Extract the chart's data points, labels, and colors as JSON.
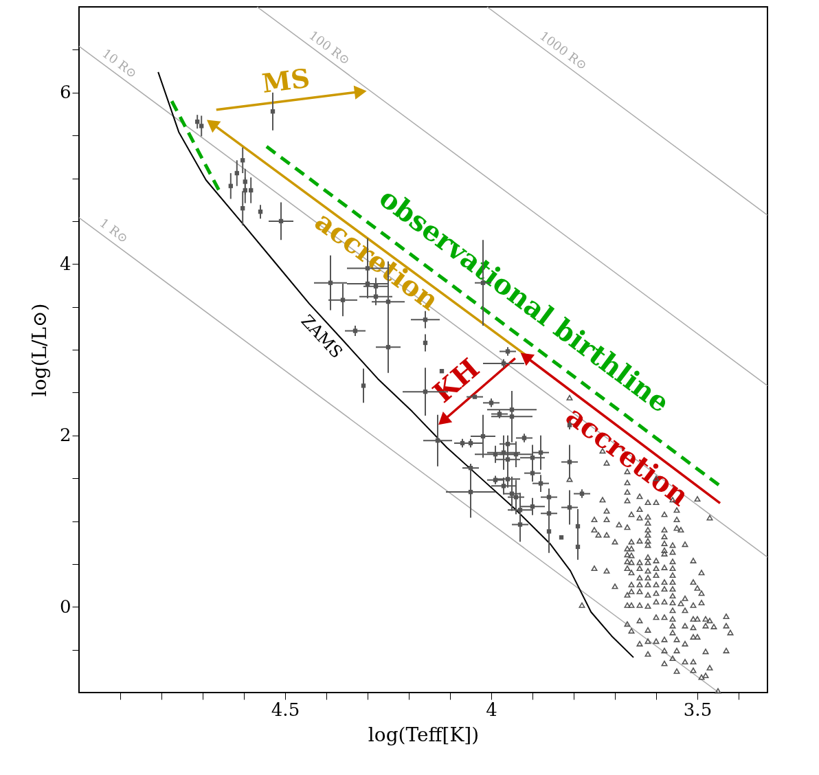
{
  "chart_data": {
    "type": "scatter",
    "xlabel": "log(Teff[K])",
    "ylabel": "log(L/L⊙)",
    "xlim": [
      5.0,
      3.33
    ],
    "ylim": [
      -1.0,
      7.0
    ],
    "xticks": [
      {
        "value": 4.9,
        "label": null
      },
      {
        "value": 4.8,
        "label": null
      },
      {
        "value": 4.7,
        "label": null
      },
      {
        "value": 4.6,
        "label": null
      },
      4.5,
      {
        "value": 4.4,
        "label": null
      },
      {
        "value": 4.3,
        "label": null
      },
      {
        "value": 4.2,
        "label": null
      },
      {
        "value": 4.1,
        "label": null
      },
      4,
      {
        "value": 3.9,
        "label": null
      },
      {
        "value": 3.8,
        "label": null
      },
      {
        "value": 3.7,
        "label": null
      },
      {
        "value": 3.6,
        "label": null
      },
      3.5,
      {
        "value": 3.4,
        "label": null
      }
    ],
    "yticks": [
      {
        "value": -0.5,
        "label": null
      },
      0,
      {
        "value": 0.5,
        "label": null
      },
      {
        "value": 1,
        "label": null
      },
      {
        "value": 1.5,
        "label": null
      },
      2,
      {
        "value": 2.5,
        "label": null
      },
      {
        "value": 3,
        "label": null
      },
      {
        "value": 3.5,
        "label": null
      },
      4,
      {
        "value": 4.5,
        "label": null
      },
      {
        "value": 5,
        "label": null
      },
      {
        "value": 5.5,
        "label": null
      },
      6,
      {
        "value": 6.5,
        "label": null
      }
    ],
    "grid": false,
    "series": [
      {
        "type": "line",
        "name": "1 R⊙",
        "color": "#aaaaaa",
        "x": [
          5.0,
          3.448
        ],
        "values": [
          4.54,
          -1.0
        ]
      },
      {
        "type": "line",
        "name": "10 R⊙",
        "color": "#aaaaaa",
        "x": [
          5.0,
          3.33
        ],
        "values": [
          6.54,
          0.58
        ]
      },
      {
        "type": "line",
        "name": "100 R⊙",
        "color": "#aaaaaa",
        "x": [
          4.568,
          3.33
        ],
        "values": [
          7.0,
          2.58
        ]
      },
      {
        "type": "line",
        "name": "1000 R⊙",
        "color": "#aaaaaa",
        "x": [
          4.01,
          3.33
        ],
        "values": [
          7.0,
          4.57
        ]
      },
      {
        "type": "line",
        "name": "ZAMS",
        "color": "#000000",
        "x": [
          4.808,
          4.758,
          4.692,
          4.608,
          4.525,
          4.442,
          4.358,
          4.275,
          4.192,
          4.108,
          4.025,
          3.942,
          3.858,
          3.808,
          3.758,
          3.708,
          3.655
        ],
        "values": [
          6.24,
          5.54,
          4.98,
          4.5,
          4.02,
          3.54,
          3.1,
          2.66,
          2.28,
          1.86,
          1.5,
          1.14,
          0.74,
          0.42,
          -0.06,
          -0.34,
          -0.59
        ]
      },
      {
        "type": "line",
        "name": "observational birthline",
        "color": "#00aa00",
        "line_style": "dashed",
        "x": [
          4.775,
          4.655,
          4.6,
          4.545,
          3.442
        ],
        "values": [
          5.9,
          4.81,
          null,
          5.37,
          1.4
        ]
      },
      {
        "type": "line",
        "name": "MS",
        "color": "#cc9900",
        "marker": "triangle",
        "x": [
          4.667,
          4.317
        ],
        "values": [
          5.8,
          6.01
        ]
      },
      {
        "type": "line",
        "name": "accretion",
        "color": "#cc9900",
        "marker": "triangle",
        "x": [
          3.917,
          4.678
        ],
        "values": [
          2.94,
          5.64
        ]
      },
      {
        "type": "line",
        "name": "accretion",
        "color": "#cc0000",
        "marker": "triangle",
        "x": [
          3.445,
          3.917
        ],
        "values": [
          1.21,
          2.92
        ]
      },
      {
        "type": "line",
        "name": "KH",
        "color": "#cc0000",
        "marker": "triangle",
        "x": [
          3.942,
          4.117
        ],
        "values": [
          2.9,
          2.17
        ]
      },
      {
        "color": "#555555",
        "marker": "square",
        "x": [
          4.713,
          4.703,
          4.603,
          4.617,
          4.597,
          4.632,
          4.597,
          4.583,
          4.603,
          4.56
        ],
        "values": [
          5.66,
          5.61,
          5.21,
          5.06,
          4.96,
          4.91,
          4.86,
          4.86,
          4.65,
          4.61
        ],
        "errors": [
          0.08,
          0.12,
          0.15,
          0.15,
          0.15,
          0.15,
          0.15,
          0.15,
          0.2,
          0.08
        ]
      },
      {
        "color": "#555555",
        "marker": "square",
        "x": [
          4.53,
          4.51,
          4.39,
          4.36,
          4.3,
          4.3,
          4.28,
          4.28,
          4.25,
          4.33,
          4.25,
          4.16,
          4.16,
          4.31,
          4.16,
          4.12,
          4.02,
          3.96,
          3.97,
          4.04,
          4.0,
          3.98,
          3.95,
          3.95,
          4.13,
          4.07,
          4.05,
          4.02,
          3.92,
          3.96,
          3.99,
          3.97,
          3.94,
          3.88,
          3.9,
          3.96,
          4.05,
          3.9,
          3.99,
          3.96,
          3.97,
          3.88,
          4.05,
          3.95,
          3.94,
          3.86,
          3.9,
          3.93,
          3.93,
          3.86,
          3.86,
          3.81,
          3.78,
          3.81,
          3.79,
          3.79,
          3.83,
          3.81
        ],
        "values": [
          5.78,
          4.5,
          3.78,
          3.58,
          3.95,
          3.77,
          3.74,
          3.62,
          3.56,
          3.22,
          3.03,
          3.35,
          3.08,
          2.58,
          2.51,
          2.75,
          3.78,
          2.98,
          2.84,
          2.45,
          2.38,
          2.25,
          2.3,
          2.22,
          1.94,
          1.91,
          1.91,
          1.99,
          1.97,
          1.9,
          1.78,
          1.8,
          1.78,
          1.8,
          1.74,
          1.72,
          1.62,
          1.56,
          1.48,
          1.49,
          1.41,
          1.44,
          1.34,
          1.32,
          1.28,
          1.28,
          1.17,
          1.13,
          0.96,
          1.09,
          0.88,
          1.69,
          1.32,
          1.16,
          0.94,
          0.7,
          0.81,
          2.12
        ],
        "xerrors": [
          null,
          0.03,
          0.04,
          0.035,
          0.05,
          0.05,
          0.03,
          0.04,
          0.04,
          0.025,
          0.03,
          0.035,
          null,
          null,
          0.055,
          null,
          0.02,
          0.02,
          0.05,
          0.02,
          0.02,
          0.02,
          0.06,
          0.05,
          0.035,
          0.02,
          0.03,
          0.03,
          0.02,
          0.02,
          0.05,
          0.04,
          0.04,
          0.02,
          0.03,
          0.03,
          0.02,
          0.02,
          0.02,
          0.03,
          0.03,
          0.02,
          0.06,
          0.02,
          0.02,
          0.02,
          0.03,
          0.03,
          0.02,
          0.02,
          null,
          0.02,
          0.02,
          0.02,
          null,
          null,
          null,
          null
        ],
        "errors": [
          0.22,
          0.22,
          0.32,
          0.19,
          0.35,
          0.1,
          0.1,
          0.1,
          0.47,
          0.06,
          0.3,
          0.1,
          0.1,
          0.2,
          0.28,
          null,
          0.5,
          0.05,
          0.05,
          null,
          0.05,
          0.05,
          0.2,
          0.3,
          0.3,
          0.05,
          0.05,
          0.25,
          0.05,
          0.1,
          0.1,
          0.2,
          0.15,
          0.2,
          0.15,
          0.15,
          0.05,
          0.1,
          0.05,
          0.1,
          0.1,
          0.1,
          0.3,
          0.2,
          0.2,
          0.1,
          0.1,
          0.2,
          0.2,
          0.2,
          0.25,
          0.2,
          0.05,
          0.2,
          0.2,
          0.15,
          null,
          0.05
        ]
      },
      {
        "color": "#555555",
        "marker": "triangle",
        "x": [
          3.81,
          3.73,
          3.72,
          3.81,
          3.67,
          3.67,
          3.67,
          3.67,
          3.73,
          3.72,
          3.75,
          3.72,
          3.75,
          3.74,
          3.72,
          3.7,
          3.69,
          3.67,
          3.66,
          3.64,
          3.64,
          3.64,
          3.62,
          3.6,
          3.62,
          3.62,
          3.62,
          3.62,
          3.62,
          3.62,
          3.66,
          3.64,
          3.66,
          3.67,
          3.67,
          3.66,
          3.67,
          3.66,
          3.64,
          3.67,
          3.66,
          3.64,
          3.64,
          3.64,
          3.64,
          3.66,
          3.66,
          3.67,
          3.67,
          3.66,
          3.64,
          3.62,
          3.62,
          3.62,
          3.62,
          3.62,
          3.62,
          3.62,
          3.6,
          3.6,
          3.6,
          3.6,
          3.6,
          3.6,
          3.6,
          3.58,
          3.58,
          3.58,
          3.58,
          3.58,
          3.58,
          3.58,
          3.58,
          3.58,
          3.58,
          3.58,
          3.55,
          3.55,
          3.55,
          3.54,
          3.53,
          3.56,
          3.56,
          3.56,
          3.56,
          3.56,
          3.56,
          3.56,
          3.56,
          3.56,
          3.56,
          3.56,
          3.56,
          3.56,
          3.55,
          3.55,
          3.56,
          3.55,
          3.58,
          3.58,
          3.58,
          3.6,
          3.62,
          3.62,
          3.64,
          3.66,
          3.67,
          3.62,
          3.64,
          3.54,
          3.53,
          3.53,
          3.53,
          3.53,
          3.53,
          3.51,
          3.51,
          3.5,
          3.49,
          3.49,
          3.49,
          3.51,
          3.51,
          3.51,
          3.51,
          3.5,
          3.5,
          3.48,
          3.48,
          3.47,
          3.46,
          3.48,
          3.51,
          3.51,
          3.49,
          3.48,
          3.47,
          3.43,
          3.43,
          3.42,
          3.43,
          3.45,
          3.47,
          3.5,
          3.56,
          3.6,
          3.7,
          3.75,
          3.72,
          3.78
        ],
        "values": [
          2.44,
          1.82,
          1.68,
          1.49,
          1.58,
          1.45,
          1.34,
          1.24,
          1.25,
          1.12,
          1.02,
          1.02,
          0.9,
          0.84,
          0.84,
          0.76,
          0.96,
          0.93,
          1.08,
          1.29,
          1.14,
          1.04,
          1.22,
          1.22,
          1.05,
          0.98,
          0.9,
          0.84,
          0.77,
          0.72,
          0.76,
          0.77,
          0.68,
          0.68,
          0.61,
          0.6,
          0.53,
          0.52,
          0.52,
          0.45,
          0.4,
          0.45,
          0.34,
          0.26,
          0.18,
          0.26,
          0.18,
          0.14,
          0.02,
          0.02,
          0.02,
          0.58,
          0.52,
          0.42,
          0.34,
          0.26,
          0.14,
          0.01,
          0.54,
          0.45,
          0.37,
          0.26,
          0.16,
          0.06,
          -0.12,
          1.08,
          0.9,
          0.82,
          0.74,
          0.66,
          0.62,
          0.46,
          0.29,
          0.21,
          0.06,
          -0.12,
          1.13,
          1.02,
          0.92,
          0.9,
          0.73,
          0.72,
          0.64,
          0.53,
          0.45,
          0.37,
          0.29,
          0.21,
          0.13,
          0.05,
          -0.04,
          -0.14,
          -0.22,
          -0.3,
          -0.38,
          -0.51,
          -0.6,
          -0.75,
          -0.38,
          -0.51,
          -0.66,
          -0.4,
          -0.4,
          -0.55,
          -0.43,
          -0.28,
          -0.2,
          -0.27,
          -0.16,
          0.04,
          0.1,
          -0.04,
          -0.22,
          -0.43,
          -0.64,
          0.54,
          0.29,
          0.22,
          0.16,
          0.4,
          0.05,
          0.02,
          -0.14,
          -0.24,
          -0.35,
          -0.14,
          -0.35,
          -0.14,
          -0.22,
          -0.16,
          -0.23,
          -0.52,
          -0.64,
          -0.74,
          -0.82,
          -0.8,
          -0.71,
          -0.11,
          -0.22,
          -0.3,
          -0.51,
          -0.98,
          1.04,
          1.26,
          1.25,
          1.5,
          0.24,
          0.45,
          0.42,
          0.02
        ]
      }
    ]
  }
}
